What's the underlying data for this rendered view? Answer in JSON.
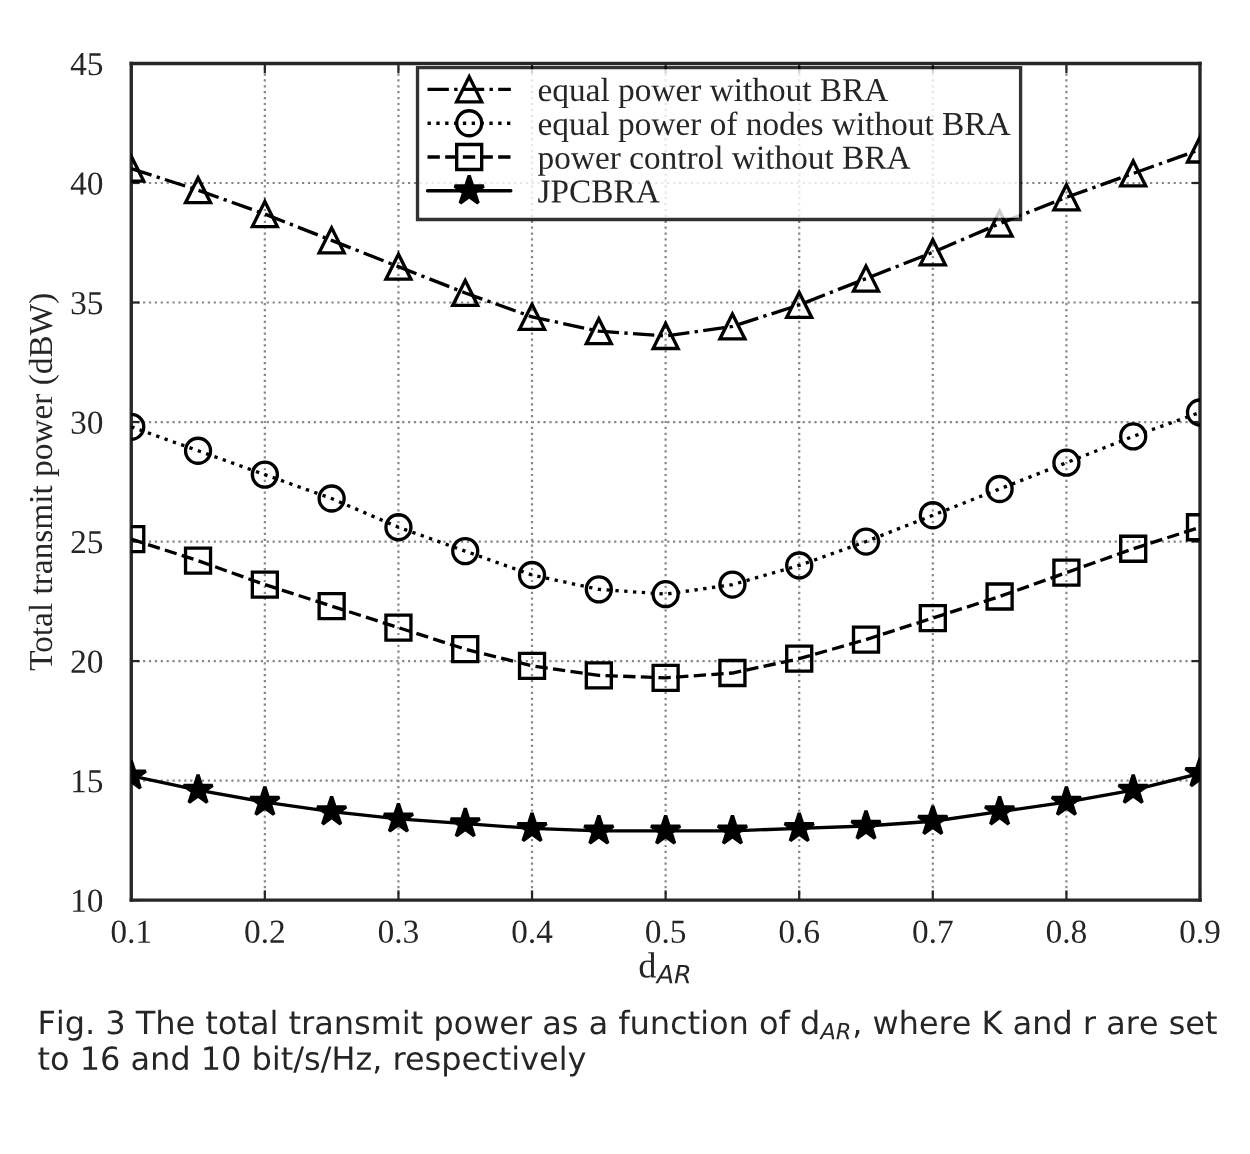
{
  "chart_data": {
    "type": "line",
    "xlabel": "d$_{AR}$",
    "ylabel": "Total transmit power (dBW)",
    "x": [
      0.1,
      0.15,
      0.2,
      0.25,
      0.3,
      0.35,
      0.4,
      0.45,
      0.5,
      0.55,
      0.6,
      0.65,
      0.7,
      0.75,
      0.8,
      0.85,
      0.9
    ],
    "series": [
      {
        "name": "equal power without BRA",
        "color": "#000000",
        "marker": "triangle",
        "line_style": "dashdot",
        "values": [
          40.6,
          39.7,
          38.7,
          37.6,
          36.5,
          35.4,
          34.4,
          33.8,
          33.6,
          34.0,
          34.9,
          36.0,
          37.1,
          38.3,
          39.4,
          40.4,
          41.4
        ]
      },
      {
        "name": "equal power of nodes without BRA",
        "color": "#000000",
        "marker": "circle",
        "line_style": "dotted",
        "values": [
          29.8,
          28.8,
          27.8,
          26.8,
          25.6,
          24.6,
          23.6,
          23.0,
          22.8,
          23.2,
          24.0,
          25.0,
          26.1,
          27.2,
          28.3,
          29.4,
          30.4
        ]
      },
      {
        "name": "power control without BRA",
        "color": "#000000",
        "marker": "square",
        "line_style": "dashed",
        "values": [
          25.1,
          24.2,
          23.2,
          22.3,
          21.4,
          20.5,
          19.8,
          19.4,
          19.3,
          19.5,
          20.1,
          20.9,
          21.8,
          22.7,
          23.7,
          24.7,
          25.6
        ]
      },
      {
        "name": "JPCBRA",
        "color": "#000000",
        "marker": "star",
        "line_style": "solid",
        "values": [
          15.2,
          14.6,
          14.1,
          13.7,
          13.4,
          13.2,
          13.0,
          12.9,
          12.9,
          12.9,
          13.0,
          13.1,
          13.3,
          13.7,
          14.1,
          14.6,
          15.3
        ]
      }
    ],
    "xlim": [
      0.1,
      0.9
    ],
    "xticks": [
      0.1,
      0.2,
      0.3,
      0.4,
      0.5,
      0.6,
      0.7,
      0.8,
      0.9
    ],
    "ylim": [
      10,
      45
    ],
    "yticks": [
      10,
      15,
      20,
      25,
      30,
      35,
      40,
      45
    ],
    "grid": true,
    "legend": "top",
    "annotations": [
      "Fig. 3 The total transmit power as a function of d$_{AR}$, where K and r are set to 16 and 10 bit/s/Hz, respectively"
    ]
  }
}
